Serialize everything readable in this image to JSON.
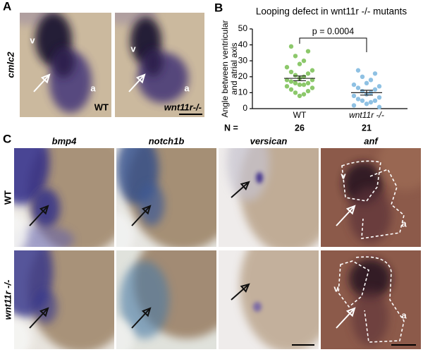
{
  "panel_labels": [
    "A",
    "B",
    "C"
  ],
  "panel_a": {
    "row_label": "cmlc2",
    "images": [
      {
        "labels": [
          "v",
          "a"
        ],
        "genotype": "WT"
      },
      {
        "labels": [
          "v",
          "a"
        ],
        "genotype": "wnt11r-/-"
      }
    ]
  },
  "chart_data": {
    "type": "strip",
    "title": "Looping defect in wnt11r -/- mutants",
    "ylabel": [
      "Angle between ventricular",
      "and atrial axis"
    ],
    "categories": [
      "WT",
      "wnt11r -/-"
    ],
    "series": [
      {
        "color": "#8cc86b",
        "values": [
          39,
          36,
          33,
          30,
          28,
          26,
          24,
          23,
          22,
          21,
          20,
          19,
          18,
          18,
          17,
          16,
          16,
          15,
          15,
          14,
          13,
          12,
          11,
          10,
          9,
          8
        ],
        "mean": 19,
        "sem": 1.5
      },
      {
        "color": "#8fc1e3",
        "values": [
          24,
          22,
          20,
          18,
          16,
          15,
          14,
          13,
          12,
          11,
          10,
          9,
          8,
          7,
          6,
          5,
          5,
          4,
          3,
          2,
          1
        ],
        "mean": 10,
        "sem": 1.5
      }
    ],
    "ylim": [
      0,
      50
    ],
    "yticks": [
      0,
      10,
      20,
      30,
      40,
      50
    ],
    "annotation": "p = 0.0004",
    "n_label": "N =",
    "n": [
      26,
      21
    ]
  },
  "panel_c": {
    "columns": [
      "bmp4",
      "notch1b",
      "versican",
      "anf"
    ],
    "rows": [
      "WT",
      "wnt11r -/-"
    ],
    "anf_labels": [
      [
        "v",
        "a"
      ],
      [
        "v",
        "a"
      ]
    ]
  }
}
